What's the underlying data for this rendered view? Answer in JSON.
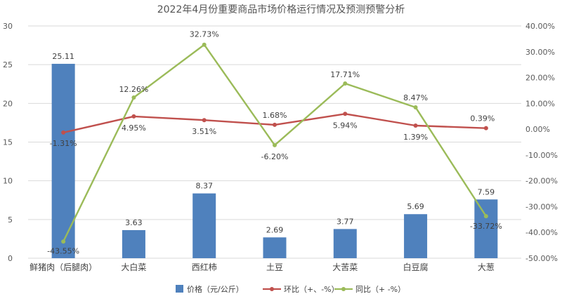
{
  "chart_data": {
    "type": "bar",
    "title": "2022年4月份重要商品市场价格运行情况及预测预警分析",
    "categories": [
      "鲜猪肉（后腿肉）",
      "大白菜",
      "西红柿",
      "土豆",
      "大苦菜",
      "白豆腐",
      "大葱"
    ],
    "y_left": {
      "min": 0,
      "max": 30,
      "ticks": [
        "0",
        "5",
        "10",
        "15",
        "20",
        "25",
        "30"
      ]
    },
    "y_right": {
      "min": -50,
      "max": 40,
      "ticks": [
        "-50.00%",
        "-40.00%",
        "-30.00%",
        "-20.00%",
        "-10.00%",
        "0.00%",
        "10.00%",
        "20.00%",
        "30.00%",
        "40.00%"
      ]
    },
    "grid": "horizontal",
    "legend_position": "bottom",
    "series": [
      {
        "name": "价格（元/公斤）",
        "type": "bar",
        "axis": "left",
        "color": "#4f81bd",
        "values": [
          25.11,
          3.63,
          8.37,
          2.69,
          3.77,
          5.69,
          7.59
        ],
        "labels": [
          "25.11",
          "3.63",
          "8.37",
          "2.69",
          "3.77",
          "5.69",
          "7.59"
        ]
      },
      {
        "name": "环比（+、-%）",
        "type": "line",
        "axis": "right",
        "color": "#c0504d",
        "values": [
          -1.31,
          4.95,
          3.51,
          1.68,
          5.94,
          1.39,
          0.39
        ],
        "labels": [
          "-1.31%",
          "4.95%",
          "3.51%",
          "1.68%",
          "5.94%",
          "1.39%",
          "0.39%"
        ]
      },
      {
        "name": "同比（+ -%）",
        "type": "line",
        "axis": "right",
        "color": "#9bbb59",
        "values": [
          -43.55,
          12.26,
          32.73,
          -6.2,
          17.71,
          8.47,
          -33.72
        ],
        "labels": [
          "-43.55%",
          "12.26%",
          "32.73%",
          "-6.20%",
          "17.71%",
          "8.47%",
          "-33.72%"
        ]
      }
    ]
  }
}
